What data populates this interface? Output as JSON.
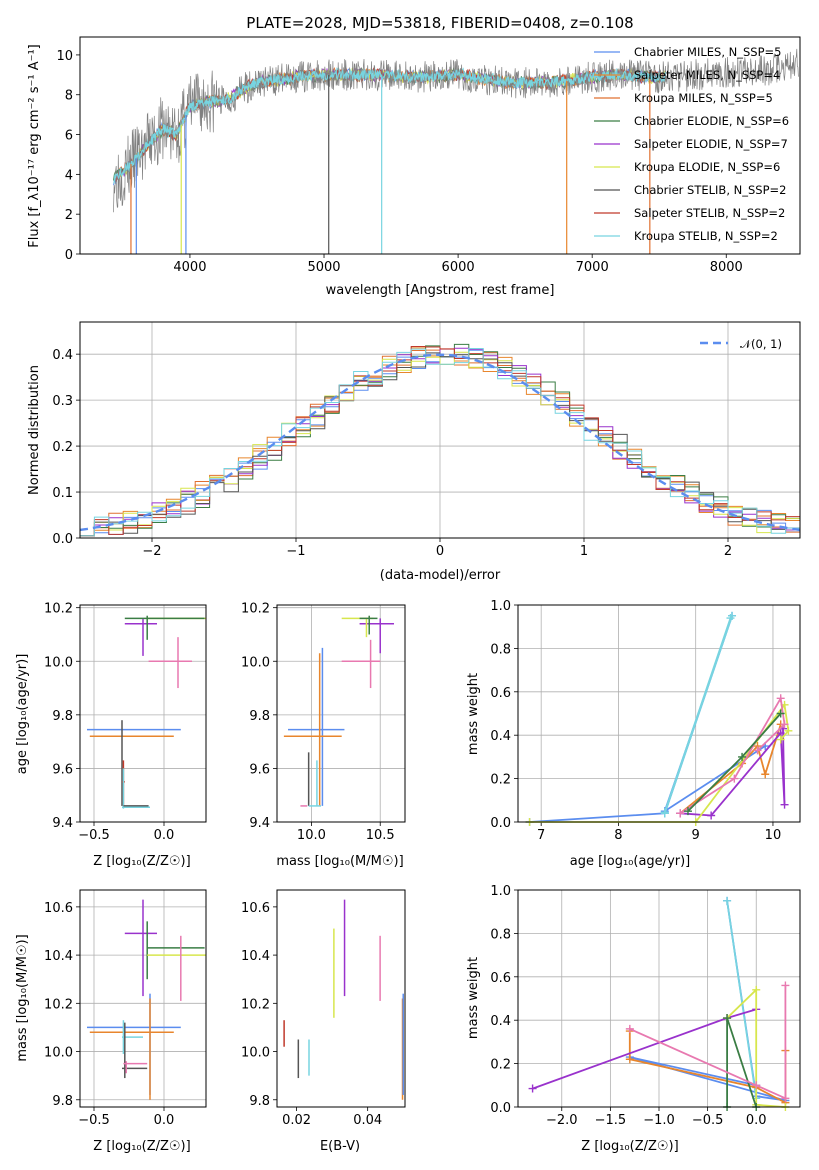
{
  "chart_data": [
    {
      "id": "spectrum",
      "type": "line",
      "title": "PLATE=2028, MJD=53818, FIBERID=0408, z=0.108",
      "xlabel": "wavelength [Angstrom, rest frame]",
      "ylabel": "Flux [f_λ10⁻¹⁷ erg cm⁻² s⁻¹ A⁻¹]",
      "xlim": [
        3180,
        8550
      ],
      "ylim": [
        0,
        10.9
      ],
      "xticks": [
        "4000",
        "5000",
        "6000",
        "7000",
        "8000"
      ],
      "yticks": [
        "0",
        "2",
        "4",
        "6",
        "8",
        "10"
      ],
      "legend_position": "right",
      "grid": false,
      "data_curve": {
        "x": [
          3430,
          3500,
          3600,
          3700,
          3800,
          3900,
          4000,
          4100,
          4200,
          4300,
          4400,
          4500,
          4600,
          4800,
          5000,
          5200,
          5400,
          5600,
          5800,
          6000,
          6200,
          6400,
          6600,
          6800,
          7000,
          7200,
          7400,
          7600,
          7800,
          8000,
          8200,
          8400,
          8540
        ],
        "y": [
          3.8,
          4.1,
          4.8,
          5.6,
          6.3,
          6.0,
          7.4,
          7.6,
          7.7,
          7.8,
          8.3,
          8.6,
          8.7,
          8.9,
          9.0,
          9.0,
          9.0,
          8.9,
          8.9,
          9.0,
          8.8,
          8.6,
          8.6,
          8.7,
          8.9,
          9.0,
          8.9,
          8.9,
          9.0,
          9.1,
          9.2,
          9.3,
          9.6
        ]
      },
      "series": [
        {
          "name": "Chabrier MILES, N_SSP=5",
          "color": "#5b8def"
        },
        {
          "name": "Salpeter MILES, N_SSP=4",
          "color": "#e8862d"
        },
        {
          "name": "Kroupa MILES, N_SSP=5",
          "color": "#e07030"
        },
        {
          "name": "Chabrier ELODIE, N_SSP=6",
          "color": "#3a7d44"
        },
        {
          "name": "Salpeter ELODIE, N_SSP=7",
          "color": "#9932cc"
        },
        {
          "name": "Kroupa ELODIE, N_SSP=6",
          "color": "#d7e64d"
        },
        {
          "name": "Chabrier STELIB, N_SSP=2",
          "color": "#555555"
        },
        {
          "name": "Salpeter STELIB, N_SSP=2",
          "color": "#c0392b"
        },
        {
          "name": "Kroupa STELIB, N_SSP=2",
          "color": "#77d4e0"
        }
      ]
    },
    {
      "id": "residuals",
      "type": "histogram",
      "xlabel": "(data-model)/error",
      "ylabel": "Normed distribution",
      "xlim": [
        -2.5,
        2.5
      ],
      "ylim": [
        0,
        0.47
      ],
      "xticks": [
        "−2",
        "−1",
        "0",
        "1",
        "2"
      ],
      "yticks": [
        "0.0",
        "0.1",
        "0.2",
        "0.3",
        "0.4"
      ],
      "grid": true,
      "legend": "𝒩(0, 1)",
      "legend_position": "top-right",
      "gaussian_color": "#5b8def"
    },
    {
      "id": "age_vs_Z",
      "type": "errorbar",
      "xlabel": "Z [log₁₀(Z/Z☉)]",
      "ylabel": "age  [log₁₀(age/yr)]",
      "xlim": [
        -0.6,
        0.3
      ],
      "ylim": [
        9.4,
        10.21
      ],
      "xticks": [
        "−0.5",
        "0.0"
      ],
      "yticks": [
        "9.4",
        "9.6",
        "9.8",
        "10.0",
        "10.2"
      ],
      "grid": true
    },
    {
      "id": "age_vs_mass",
      "type": "errorbar",
      "xlabel": "mass [log₁₀(M/M☉)]",
      "xlim": [
        9.75,
        10.68
      ],
      "ylim": [
        9.4,
        10.21
      ],
      "xticks": [
        "10.0",
        "10.5"
      ],
      "yticks": [
        "9.4",
        "9.6",
        "9.8",
        "10.0",
        "10.2"
      ],
      "grid": true
    },
    {
      "id": "weight_vs_age",
      "type": "line",
      "xlabel": "age  [log₁₀(age/yr)]",
      "ylabel": "mass weight",
      "xlim": [
        6.7,
        10.35
      ],
      "ylim": [
        0,
        1
      ],
      "xticks": [
        "7",
        "8",
        "9",
        "10"
      ],
      "yticks": [
        "0.0",
        "0.2",
        "0.4",
        "0.6",
        "0.8",
        "1.0"
      ],
      "grid": true
    },
    {
      "id": "mass_vs_Z",
      "type": "errorbar",
      "xlabel": "Z [log₁₀(Z/Z☉)]",
      "ylabel": "mass [log₁₀(M/M☉)]",
      "xlim": [
        -0.6,
        0.3
      ],
      "ylim": [
        9.77,
        10.67
      ],
      "xticks": [
        "−0.5",
        "0.0"
      ],
      "yticks": [
        "9.8",
        "10.0",
        "10.2",
        "10.4",
        "10.6"
      ],
      "grid": true
    },
    {
      "id": "mass_vs_ebv",
      "type": "errorbar",
      "xlabel": "E(B-V)",
      "xlim": [
        0.0145,
        0.0505
      ],
      "ylim": [
        9.77,
        10.67
      ],
      "xticks": [
        "0.02",
        "0.04"
      ],
      "yticks": [
        "9.8",
        "10.0",
        "10.2",
        "10.4",
        "10.6"
      ],
      "grid": false
    },
    {
      "id": "weight_vs_Z",
      "type": "line",
      "xlabel": "Z [log₁₀(Z/Z☉)]",
      "ylabel": "mass weight",
      "xlim": [
        -2.45,
        0.45
      ],
      "ylim": [
        0,
        1
      ],
      "xticks": [
        "−2.0",
        "−1.5",
        "−1.0",
        "−0.5",
        "0.0"
      ],
      "yticks": [
        "0.0",
        "0.2",
        "0.4",
        "0.6",
        "0.8",
        "1.0"
      ],
      "grid": true
    }
  ],
  "fit_params": {
    "colors": [
      "#5b8def",
      "#e8862d",
      "#3a7d44",
      "#9932cc",
      "#d7e64d",
      "#555555",
      "#c0392b",
      "#77d4e0",
      "#e879b0"
    ],
    "age_Z": [
      {
        "c": 0,
        "x": -0.1,
        "xe": [
          -0.55,
          0.12
        ],
        "y": 9.745,
        "ye": [
          9.745,
          9.745
        ]
      },
      {
        "c": 1,
        "x": -0.1,
        "xe": [
          -0.53,
          0.07
        ],
        "y": 9.72,
        "ye": [
          9.72,
          9.72
        ]
      },
      {
        "c": 5,
        "x": -0.3,
        "xe": [
          -0.3,
          -0.3
        ],
        "y": 9.7,
        "ye": [
          9.46,
          9.78
        ]
      },
      {
        "c": 6,
        "x": -0.29,
        "xe": [
          -0.3,
          -0.28
        ],
        "y": 9.55,
        "ye": [
          9.46,
          9.63
        ]
      },
      {
        "c": 7,
        "x": -0.29,
        "xe": [
          -0.29,
          -0.29
        ],
        "y": 9.5,
        "ye": [
          9.45,
          9.6
        ]
      },
      {
        "c": 3,
        "x": -0.15,
        "xe": [
          -0.28,
          -0.05
        ],
        "y": 10.14,
        "ye": [
          10.02,
          10.16
        ]
      },
      {
        "c": 4,
        "x": 0.0,
        "xe": [
          -0.12,
          0.3
        ],
        "y": 10.16,
        "ye": [
          10.16,
          10.16
        ]
      },
      {
        "c": 2,
        "x": -0.12,
        "xe": [
          -0.28,
          0.29
        ],
        "y": 10.16,
        "ye": [
          10.08,
          10.17
        ]
      },
      {
        "c": 8,
        "x": 0.1,
        "xe": [
          -0.11,
          0.2
        ],
        "y": 10.0,
        "ye": [
          9.9,
          10.09
        ]
      },
      {
        "c": 5,
        "x": -0.12,
        "xe": [
          -0.29,
          -0.11
        ],
        "y": 9.46,
        "ye": [
          9.46,
          9.46
        ]
      },
      {
        "c": 7,
        "x": -0.27,
        "xe": [
          -0.3,
          -0.1
        ],
        "y": 9.455,
        "ye": [
          9.455,
          9.455
        ]
      }
    ],
    "age_mass": [
      {
        "c": 0,
        "x": 10.08,
        "xe": [
          9.83,
          10.24
        ],
        "y": 9.745,
        "ye": [
          9.46,
          10.05
        ]
      },
      {
        "c": 1,
        "x": 10.06,
        "xe": [
          9.8,
          10.22
        ],
        "y": 9.72,
        "ye": [
          9.46,
          10.03
        ]
      },
      {
        "c": 5,
        "x": 9.98,
        "xe": [
          9.98,
          9.98
        ],
        "y": 9.6,
        "ye": [
          9.46,
          9.66
        ]
      },
      {
        "c": 7,
        "x": 10.04,
        "xe": [
          9.98,
          10.07
        ],
        "y": 9.46,
        "ye": [
          9.46,
          9.63
        ]
      },
      {
        "c": 8,
        "x": 9.95,
        "xe": [
          9.92,
          9.97
        ],
        "y": 9.46,
        "ye": [
          9.46,
          9.46
        ]
      },
      {
        "c": 3,
        "x": 10.5,
        "xe": [
          10.35,
          10.6
        ],
        "y": 10.14,
        "ye": [
          10.03,
          10.16
        ]
      },
      {
        "c": 4,
        "x": 10.4,
        "xe": [
          10.22,
          10.45
        ],
        "y": 10.16,
        "ye": [
          10.09,
          10.16
        ]
      },
      {
        "c": 2,
        "x": 10.42,
        "xe": [
          10.35,
          10.48
        ],
        "y": 10.16,
        "ye": [
          10.1,
          10.17
        ]
      },
      {
        "c": 8,
        "x": 10.43,
        "xe": [
          10.22,
          10.5
        ],
        "y": 10.0,
        "ye": [
          9.9,
          10.08
        ]
      }
    ],
    "mass_Z": [
      {
        "c": 0,
        "x": -0.1,
        "xe": [
          -0.55,
          0.12
        ],
        "y": 10.1,
        "ye": [
          9.82,
          10.24
        ]
      },
      {
        "c": 1,
        "x": -0.1,
        "xe": [
          -0.53,
          0.07
        ],
        "y": 10.08,
        "ye": [
          9.8,
          10.22
        ]
      },
      {
        "c": 7,
        "x": -0.29,
        "xe": [
          -0.3,
          -0.15
        ],
        "y": 10.06,
        "ye": [
          9.99,
          10.13
        ]
      },
      {
        "c": 5,
        "x": -0.28,
        "xe": [
          -0.3,
          -0.12
        ],
        "y": 9.93,
        "ye": [
          9.89,
          10.12
        ]
      },
      {
        "c": 8,
        "x": -0.27,
        "xe": [
          -0.29,
          -0.12
        ],
        "y": 9.95,
        "ye": [
          9.91,
          9.96
        ]
      },
      {
        "c": 3,
        "x": -0.15,
        "xe": [
          -0.28,
          -0.05
        ],
        "y": 10.49,
        "ye": [
          10.23,
          10.63
        ]
      },
      {
        "c": 2,
        "x": -0.12,
        "xe": [
          -0.12,
          0.29
        ],
        "y": 10.43,
        "ye": [
          10.3,
          10.54
        ]
      },
      {
        "c": 4,
        "x": 0.0,
        "xe": [
          -0.12,
          0.3
        ],
        "y": 10.4,
        "ye": [
          10.4,
          10.4
        ]
      },
      {
        "c": 8,
        "x": 0.12,
        "xe": [
          0.12,
          0.12
        ],
        "y": 10.3,
        "ye": [
          10.21,
          10.48
        ]
      }
    ],
    "mass_ebv": [
      {
        "c": 6,
        "x": 0.0165,
        "y0": 10.02,
        "y1": 10.13
      },
      {
        "c": 5,
        "x": 0.0205,
        "y0": 9.89,
        "y1": 10.05
      },
      {
        "c": 7,
        "x": 0.0235,
        "y0": 9.9,
        "y1": 10.05
      },
      {
        "c": 4,
        "x": 0.0305,
        "y0": 10.14,
        "y1": 10.51
      },
      {
        "c": 3,
        "x": 0.0335,
        "y0": 10.23,
        "y1": 10.63
      },
      {
        "c": 8,
        "x": 0.0435,
        "y0": 10.21,
        "y1": 10.48
      },
      {
        "c": 1,
        "x": 0.0498,
        "y0": 9.8,
        "y1": 10.22
      },
      {
        "c": 0,
        "x": 0.05,
        "y0": 9.82,
        "y1": 10.24
      }
    ],
    "weight_age": [
      {
        "c": 0,
        "pts": [
          [
            6.85,
            0.0
          ],
          [
            8.6,
            0.04
          ],
          [
            9.47,
            0.95
          ],
          [
            8.6,
            0.05
          ],
          [
            9.9,
            0.35
          ]
        ]
      },
      {
        "c": 7,
        "pts": [
          [
            8.6,
            0.04
          ],
          [
            9.47,
            0.95
          ],
          [
            8.6,
            0.045
          ],
          [
            9.45,
            0.94
          ]
        ]
      },
      {
        "c": 1,
        "pts": [
          [
            8.8,
            0.04
          ],
          [
            9.6,
            0.27
          ],
          [
            9.8,
            0.35
          ],
          [
            9.9,
            0.22
          ],
          [
            10.1,
            0.45
          ]
        ]
      },
      {
        "c": 3,
        "pts": [
          [
            8.8,
            0.04
          ],
          [
            9.2,
            0.03
          ],
          [
            10.1,
            0.41
          ],
          [
            10.15,
            0.08
          ],
          [
            10.13,
            0.43
          ]
        ]
      },
      {
        "c": 4,
        "pts": [
          [
            6.85,
            0.0
          ],
          [
            9.0,
            0.0
          ],
          [
            10.15,
            0.54
          ],
          [
            10.2,
            0.42
          ],
          [
            10.1,
            0.38
          ]
        ]
      },
      {
        "c": 8,
        "pts": [
          [
            8.8,
            0.04
          ],
          [
            9.5,
            0.2
          ],
          [
            10.1,
            0.57
          ],
          [
            10.15,
            0.45
          ],
          [
            9.8,
            0.33
          ]
        ]
      },
      {
        "c": 2,
        "pts": [
          [
            8.9,
            0.05
          ],
          [
            9.6,
            0.3
          ],
          [
            10.1,
            0.5
          ]
        ]
      }
    ],
    "weight_Z": [
      {
        "c": 0,
        "pts": [
          [
            -0.3,
            0.95
          ],
          [
            0.0,
            0.05
          ],
          [
            0.3,
            0.03
          ],
          [
            -1.3,
            0.23
          ],
          [
            0.0,
            0.1
          ]
        ]
      },
      {
        "c": 7,
        "pts": [
          [
            -0.3,
            0.95
          ],
          [
            0.0,
            0.04
          ]
        ]
      },
      {
        "c": 1,
        "pts": [
          [
            -1.3,
            0.35
          ],
          [
            -1.3,
            0.22
          ],
          [
            0.0,
            0.09
          ],
          [
            0.3,
            0.02
          ],
          [
            0.3,
            0.26
          ]
        ]
      },
      {
        "c": 3,
        "pts": [
          [
            -2.3,
            0.085
          ],
          [
            -0.3,
            0.41
          ],
          [
            0.0,
            0.45
          ]
        ]
      },
      {
        "c": 4,
        "pts": [
          [
            -0.3,
            0.41
          ],
          [
            0.0,
            0.54
          ],
          [
            0.0,
            0.01
          ],
          [
            0.3,
            0.0
          ]
        ]
      },
      {
        "c": 2,
        "pts": [
          [
            -0.3,
            0.0
          ],
          [
            -0.3,
            0.41
          ],
          [
            0.0,
            0.0
          ]
        ]
      },
      {
        "c": 8,
        "pts": [
          [
            -1.3,
            0.36
          ],
          [
            0.0,
            0.1
          ],
          [
            0.3,
            0.04
          ],
          [
            0.3,
            0.56
          ]
        ]
      }
    ]
  }
}
